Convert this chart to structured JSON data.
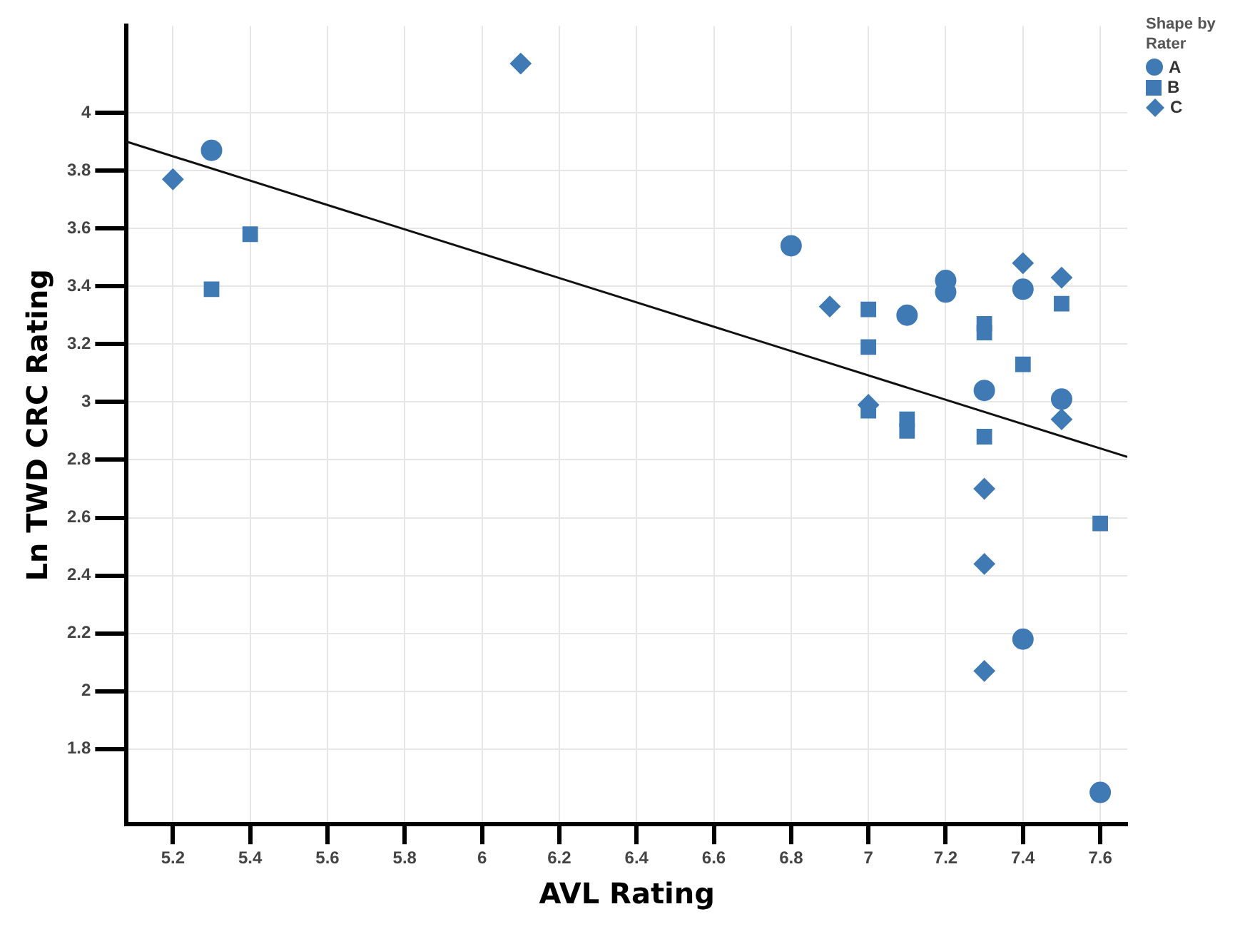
{
  "chart_data": {
    "type": "scatter",
    "xlabel": "AVL Rating",
    "ylabel": "Ln TWD CRC Rating",
    "legend_title": "Shape by Rater",
    "legend": "top right",
    "grid": true,
    "xlim": [
      5.08,
      7.67
    ],
    "xticks": [
      5.2,
      5.4,
      5.6,
      5.8,
      6,
      6.2,
      6.4,
      6.6,
      6.8,
      7,
      7.2,
      7.4,
      7.6
    ],
    "ylim": [
      1.54,
      4.3
    ],
    "yticks": [
      1.8,
      2,
      2.2,
      2.4,
      2.6,
      2.8,
      3,
      3.2,
      3.4,
      3.6,
      3.8,
      4
    ],
    "series": [
      {
        "name": "A",
        "color": "#3f7ab5",
        "marker": "circle",
        "x": [
          5.3,
          6.8,
          7.1,
          7.2,
          7.2,
          7.4,
          7.3,
          7.5,
          7.4,
          7.6
        ],
        "values": [
          3.87,
          3.54,
          3.3,
          3.42,
          3.38,
          3.39,
          3.04,
          3.01,
          2.18,
          1.65
        ]
      },
      {
        "name": "B",
        "color": "#3f7ab5",
        "marker": "square",
        "x": [
          5.3,
          5.4,
          7.0,
          7.0,
          7.0,
          7.1,
          7.1,
          7.3,
          7.3,
          7.5,
          7.4,
          7.3,
          7.6
        ],
        "values": [
          3.39,
          3.58,
          3.32,
          3.19,
          2.97,
          2.94,
          2.9,
          3.27,
          3.24,
          3.34,
          3.13,
          2.88,
          2.58
        ]
      },
      {
        "name": "C",
        "color": "#3f7ab5",
        "marker": "diamond",
        "x": [
          5.2,
          6.1,
          6.9,
          7.0,
          7.4,
          7.5,
          7.5,
          7.3,
          7.3,
          7.3
        ],
        "values": [
          3.77,
          4.17,
          3.33,
          2.99,
          3.48,
          3.43,
          2.94,
          2.7,
          2.44,
          2.07
        ]
      },
      {
        "type": "line",
        "color": "#111111",
        "marker": "none",
        "line_style": "solid",
        "x": [
          5.08,
          7.67
        ],
        "values": [
          3.9,
          2.81
        ]
      }
    ]
  }
}
